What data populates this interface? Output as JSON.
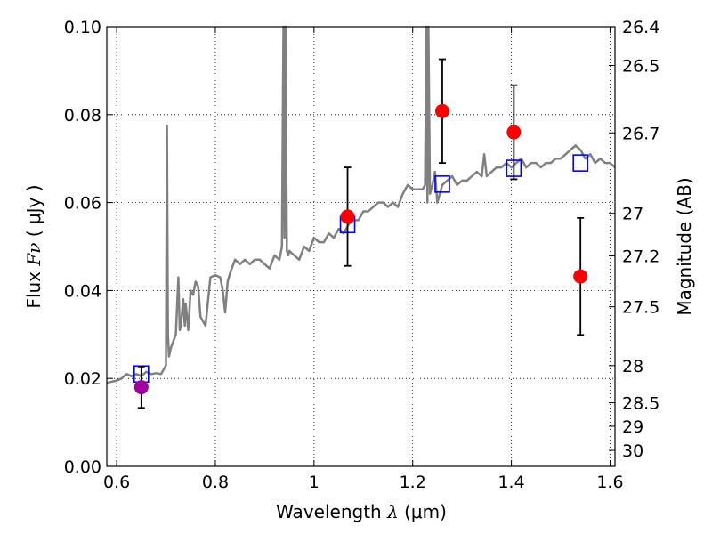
{
  "chart_data": {
    "type": "scatter",
    "xlabel": "Wavelength  λ (μm)",
    "ylabel": "Flux  Fν  ( μJy )",
    "y2label": "Magnitude (AB)",
    "xlim": [
      0.58,
      1.61
    ],
    "ylim": [
      0.0,
      0.1
    ],
    "grid": true,
    "x_ticks": [
      0.6,
      0.8,
      1.0,
      1.2,
      1.4,
      1.6
    ],
    "x_tick_labels": [
      "0.6",
      "0.8",
      "1",
      "1.2",
      "1.4",
      "1.6"
    ],
    "y_ticks": [
      0.0,
      0.02,
      0.04,
      0.06,
      0.08,
      0.1
    ],
    "y_tick_labels": [
      "0.00",
      "0.02",
      "0.04",
      "0.06",
      "0.08",
      "0.10"
    ],
    "mag_ticks": [
      "26.4",
      "26.5",
      "26.7",
      "27",
      "27.2",
      "27.5",
      "28",
      "28.5",
      "29",
      "30"
    ],
    "colors": {
      "model": "#808080",
      "model_photometry": "#0000ff",
      "observed": "#ff0000",
      "observed_alt": "#a000a0",
      "errorbar": "#000000"
    },
    "series": [
      {
        "kind": "model_spectrum",
        "x": [
          0.58,
          0.6,
          0.61,
          0.62,
          0.63,
          0.64,
          0.65,
          0.66,
          0.67,
          0.68,
          0.69,
          0.695,
          0.7,
          0.702,
          0.704,
          0.706,
          0.71,
          0.72,
          0.725,
          0.728,
          0.73,
          0.735,
          0.738,
          0.74,
          0.745,
          0.75,
          0.755,
          0.76,
          0.765,
          0.77,
          0.78,
          0.79,
          0.8,
          0.81,
          0.815,
          0.82,
          0.825,
          0.83,
          0.84,
          0.85,
          0.86,
          0.87,
          0.88,
          0.89,
          0.9,
          0.91,
          0.92,
          0.93,
          0.935,
          0.938,
          0.94,
          0.942,
          0.945,
          0.948,
          0.95,
          0.96,
          0.97,
          0.98,
          0.99,
          1.0,
          1.01,
          1.02,
          1.03,
          1.04,
          1.05,
          1.06,
          1.07,
          1.08,
          1.09,
          1.1,
          1.11,
          1.12,
          1.13,
          1.14,
          1.15,
          1.16,
          1.17,
          1.18,
          1.19,
          1.2,
          1.21,
          1.22,
          1.225,
          1.228,
          1.23,
          1.232,
          1.235,
          1.24,
          1.245,
          1.25,
          1.26,
          1.27,
          1.28,
          1.29,
          1.3,
          1.31,
          1.32,
          1.33,
          1.34,
          1.345,
          1.35,
          1.36,
          1.37,
          1.38,
          1.39,
          1.4,
          1.41,
          1.42,
          1.43,
          1.44,
          1.45,
          1.46,
          1.47,
          1.48,
          1.49,
          1.5,
          1.51,
          1.52,
          1.53,
          1.54,
          1.55,
          1.56,
          1.57,
          1.58,
          1.59,
          1.6,
          1.61
        ],
        "y": [
          0.019,
          0.0195,
          0.02,
          0.021,
          0.0205,
          0.021,
          0.0205,
          0.0215,
          0.021,
          0.0212,
          0.021,
          0.022,
          0.023,
          0.0775,
          0.03,
          0.025,
          0.027,
          0.03,
          0.043,
          0.031,
          0.032,
          0.038,
          0.032,
          0.037,
          0.031,
          0.04,
          0.039,
          0.042,
          0.041,
          0.034,
          0.032,
          0.043,
          0.0435,
          0.043,
          0.04,
          0.035,
          0.042,
          0.044,
          0.047,
          0.046,
          0.047,
          0.046,
          0.047,
          0.047,
          0.046,
          0.045,
          0.048,
          0.047,
          0.05,
          0.1,
          0.052,
          0.1,
          0.049,
          0.048,
          0.049,
          0.048,
          0.047,
          0.05,
          0.049,
          0.052,
          0.051,
          0.051,
          0.053,
          0.052,
          0.054,
          0.053,
          0.055,
          0.056,
          0.056,
          0.058,
          0.058,
          0.059,
          0.06,
          0.06,
          0.059,
          0.06,
          0.059,
          0.062,
          0.064,
          0.063,
          0.063,
          0.063,
          0.064,
          0.1,
          0.06,
          0.1,
          0.062,
          0.064,
          0.067,
          0.06,
          0.064,
          0.065,
          0.066,
          0.064,
          0.065,
          0.065,
          0.066,
          0.067,
          0.066,
          0.071,
          0.066,
          0.067,
          0.068,
          0.068,
          0.069,
          0.068,
          0.069,
          0.07,
          0.068,
          0.069,
          0.069,
          0.068,
          0.069,
          0.069,
          0.07,
          0.07,
          0.071,
          0.072,
          0.073,
          0.072,
          0.07,
          0.071,
          0.069,
          0.07,
          0.069,
          0.069,
          0.068
        ]
      },
      {
        "kind": "model_photometry",
        "x": [
          0.65,
          1.068,
          1.26,
          1.405,
          1.54
        ],
        "y": [
          0.021,
          0.055,
          0.0642,
          0.0678,
          0.069
        ]
      },
      {
        "kind": "observed_photometry",
        "x": [
          0.65,
          1.068,
          1.26,
          1.405,
          1.54
        ],
        "y": [
          0.018,
          0.0568,
          0.0808,
          0.076,
          0.0432
        ],
        "yerr": [
          0.0047,
          0.0112,
          0.0118,
          0.0107,
          0.0133
        ],
        "color_keys": [
          "observed_alt",
          "observed",
          "observed",
          "observed",
          "observed"
        ]
      }
    ]
  }
}
